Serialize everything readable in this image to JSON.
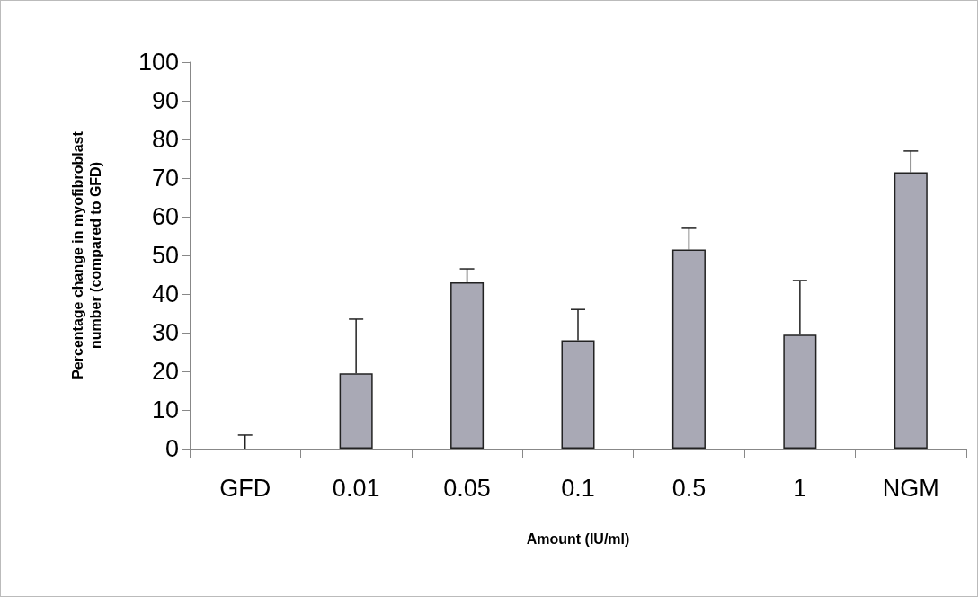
{
  "chart_data": {
    "type": "bar",
    "xlabel": "Amount (IU/ml)",
    "ylabel": "Percentage change in myofibroblast number (compared to GFD)",
    "categories": [
      "GFD",
      "0.01",
      "0.05",
      "0.1",
      "0.5",
      "1",
      "NGM"
    ],
    "values": [
      0,
      19.5,
      43,
      28,
      51.5,
      29.5,
      71.5
    ],
    "errors": [
      [
        0,
        3.5
      ],
      [
        19.5,
        33.5
      ],
      [
        43,
        46.5
      ],
      [
        28,
        36
      ],
      [
        51.5,
        57
      ],
      [
        29.5,
        43.5
      ],
      [
        71.5,
        77
      ]
    ],
    "color": "#a9a9b5",
    "ylim": [
      0,
      100
    ],
    "yticks": [
      0,
      10,
      20,
      30,
      40,
      50,
      60,
      70,
      80,
      90,
      100
    ],
    "grid": false
  }
}
